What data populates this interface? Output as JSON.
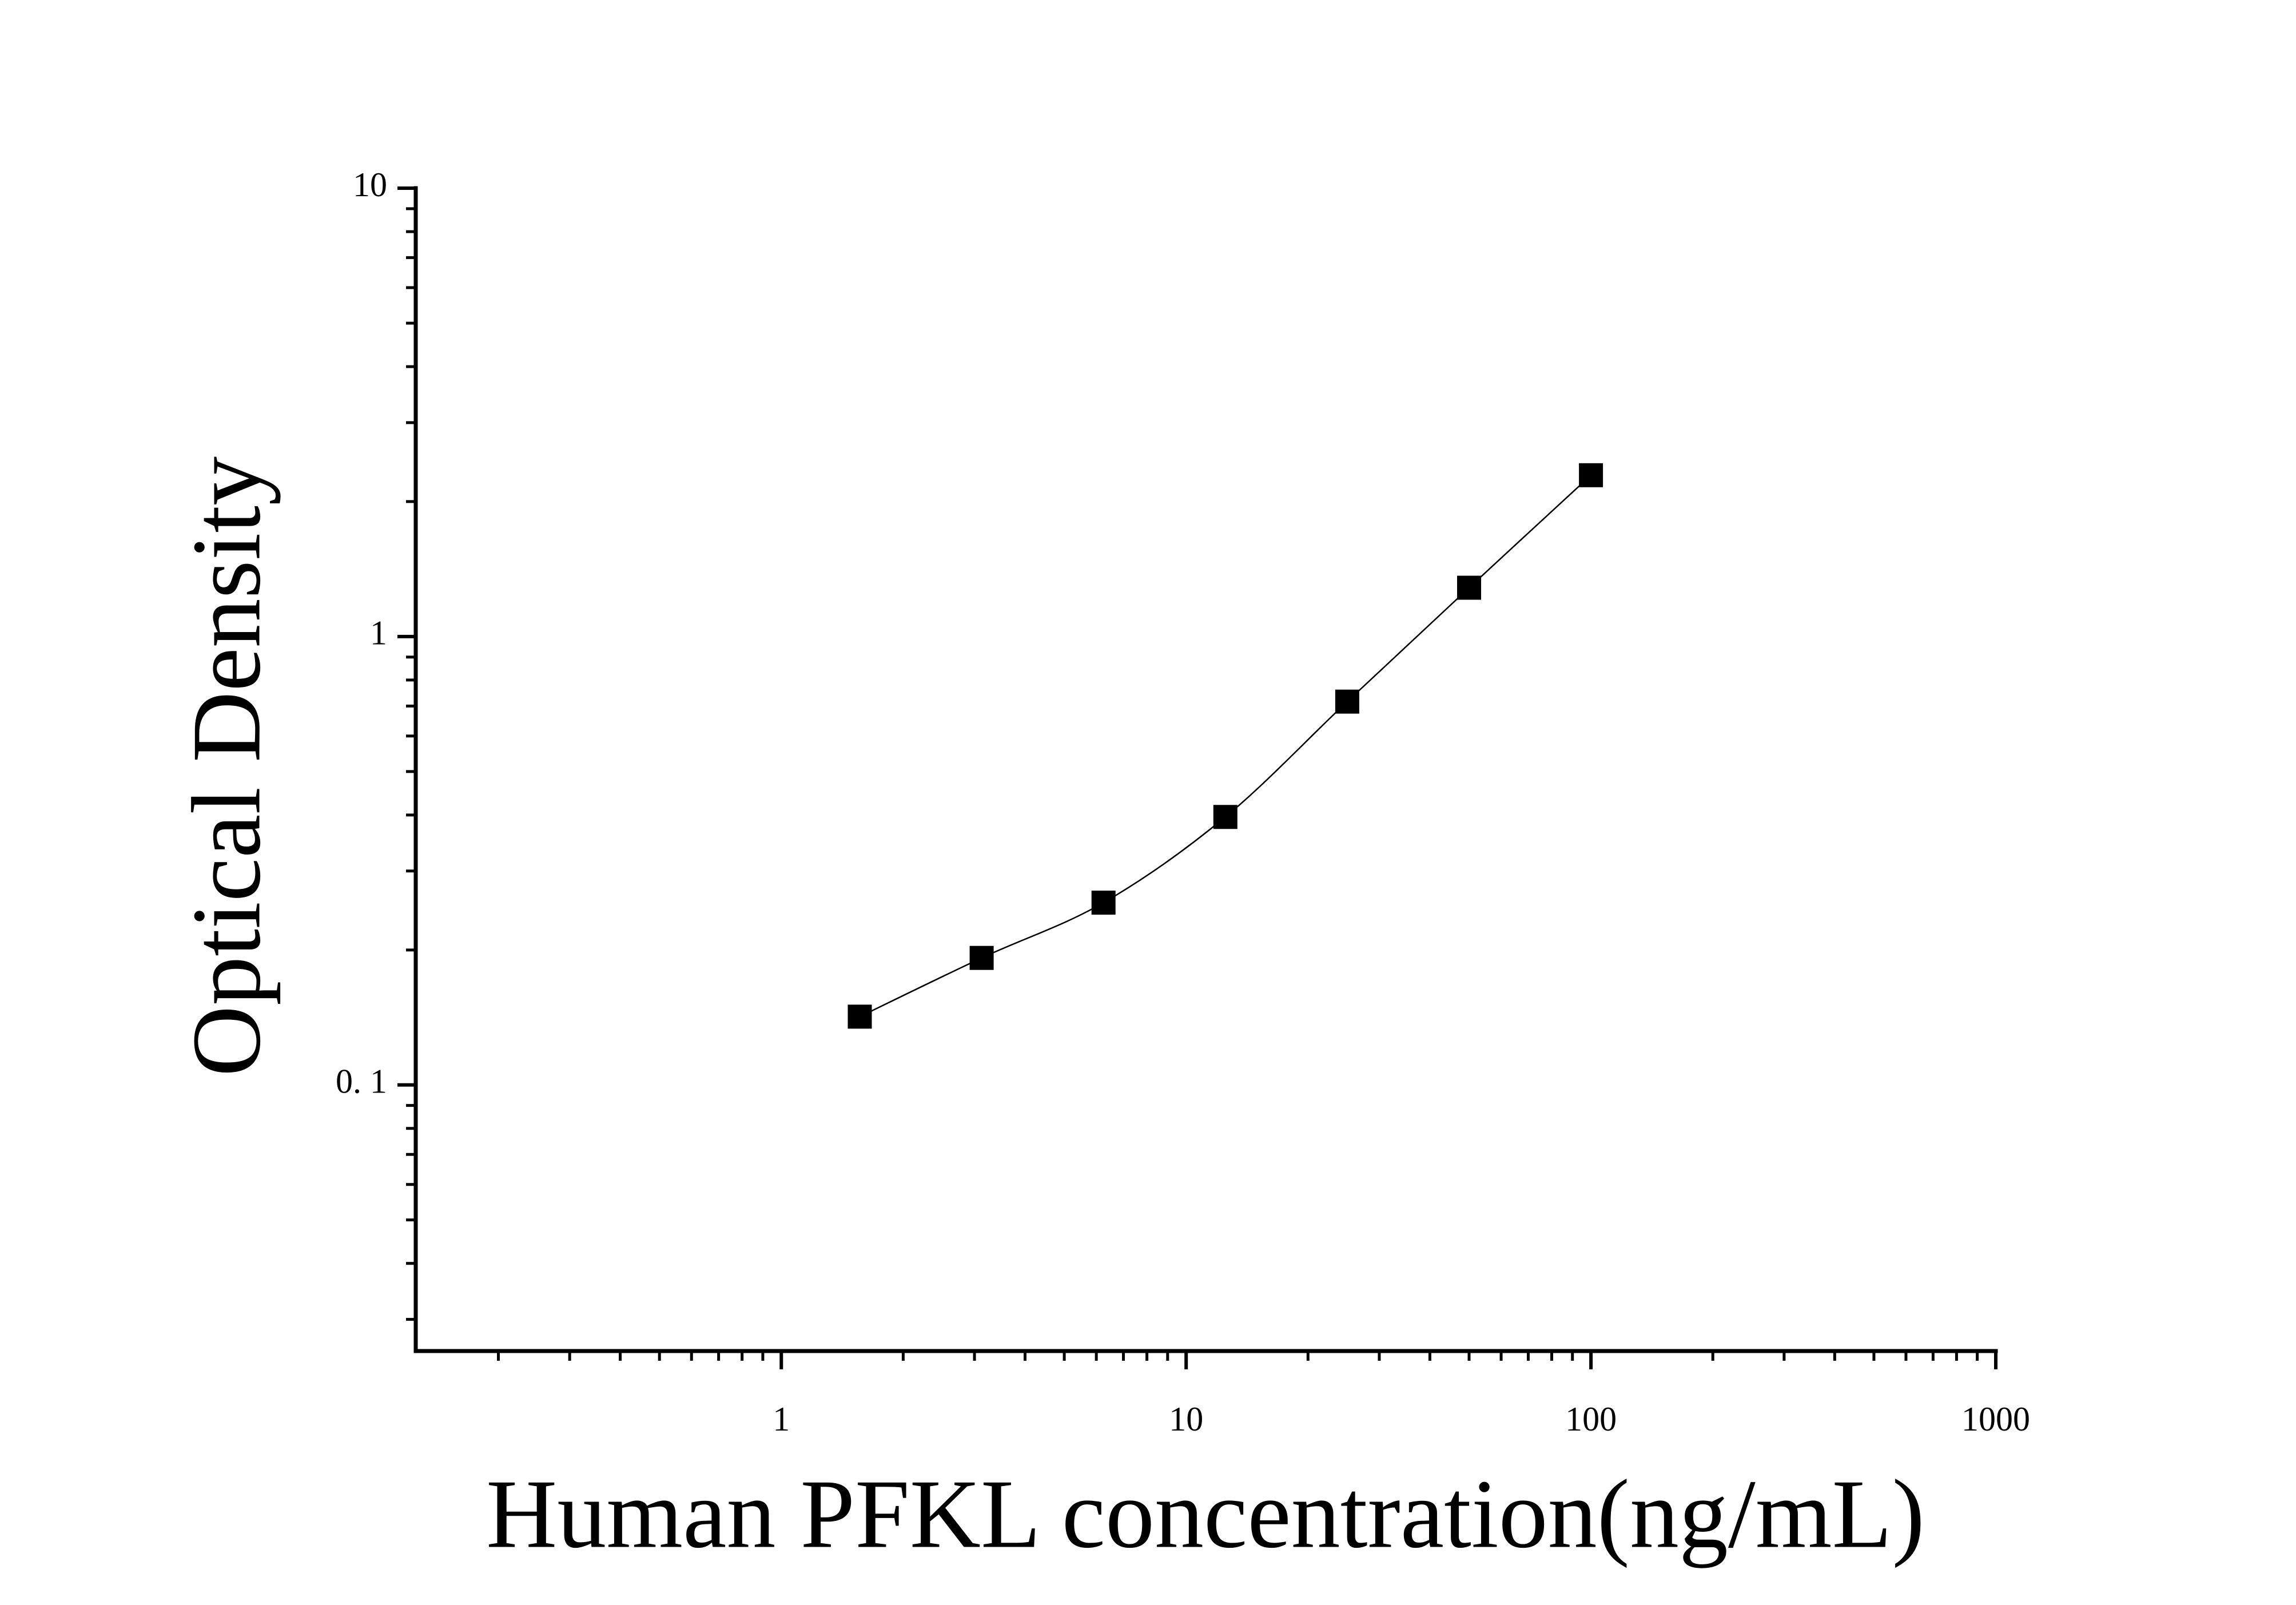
{
  "chart_data": {
    "type": "scatter",
    "xlabel": "Human PFKL concentration(ng/mL)",
    "ylabel": "Optical Density",
    "x": [
      1.5625,
      3.125,
      6.25,
      12.5,
      25,
      50,
      100
    ],
    "values": [
      0.142,
      0.192,
      0.255,
      0.396,
      0.716,
      1.285,
      2.29
    ],
    "color": "#000000",
    "xscale": "log",
    "yscale": "log",
    "xlim": [
      0.125,
      1000
    ],
    "ylim": [
      0.0255,
      10
    ],
    "xticks": [
      1,
      10,
      100,
      1000
    ],
    "yticks": [
      {
        "value": 0.1,
        "label": "0. 1"
      },
      1,
      10
    ],
    "xminorticks": [
      0.2,
      0.3,
      0.4,
      0.5,
      0.6,
      0.7,
      0.8,
      0.9,
      2,
      3,
      4,
      5,
      6,
      7,
      8,
      9,
      20,
      30,
      40,
      50,
      60,
      70,
      80,
      90,
      200,
      300,
      400,
      500,
      600,
      700,
      800,
      900
    ],
    "yminorticks": [
      0.03,
      0.04,
      0.05,
      0.06,
      0.07,
      0.08,
      0.09,
      0.2,
      0.3,
      0.4,
      0.5,
      0.6,
      0.7,
      0.8,
      0.9,
      2,
      3,
      4,
      5,
      6,
      7,
      8,
      9
    ],
    "fit_curve": true
  }
}
